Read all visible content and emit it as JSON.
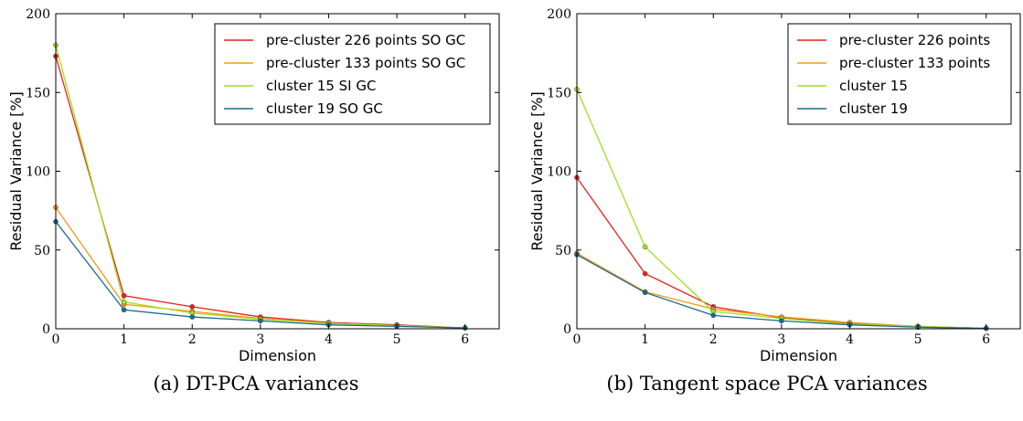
{
  "chart_data": [
    {
      "type": "line",
      "caption": "(a) DT-PCA variances",
      "xlabel": "Dimension",
      "ylabel": "Residual Variance [%]",
      "xlim": [
        0,
        6.5
      ],
      "ylim": [
        0,
        200
      ],
      "xticks": [
        "0",
        "1",
        "2",
        "3",
        "4",
        "5",
        "6"
      ],
      "yticks": [
        "0",
        "50",
        "100",
        "150",
        "200"
      ],
      "x": [
        0,
        1,
        2,
        3,
        4,
        5,
        6
      ],
      "legend_position": "top-right",
      "series": [
        {
          "name": "pre-cluster 226 points SO GC",
          "color": "#e8211b",
          "values": [
            173,
            21,
            14,
            7.5,
            4,
            2.5,
            0.5
          ]
        },
        {
          "name": "pre-cluster 133 points SO GC",
          "color": "#f39a14",
          "values": [
            77,
            15.5,
            11,
            6.5,
            3.5,
            2,
            0.5
          ]
        },
        {
          "name": "cluster 15 SI GC",
          "color": "#9ae21d",
          "values": [
            180,
            17,
            10,
            6,
            3.5,
            2,
            0.5
          ]
        },
        {
          "name": "cluster 19 SO GC",
          "color": "#1a6b8e",
          "values": [
            68,
            12,
            7.5,
            5,
            2.5,
            1.5,
            0.5
          ]
        }
      ]
    },
    {
      "type": "line",
      "caption": "(b) Tangent space PCA variances",
      "xlabel": "Dimension",
      "ylabel": "Residual Variance [%]",
      "xlim": [
        0,
        6.5
      ],
      "ylim": [
        0,
        200
      ],
      "xticks": [
        "0",
        "1",
        "2",
        "3",
        "4",
        "5",
        "6"
      ],
      "yticks": [
        "0",
        "50",
        "100",
        "150",
        "200"
      ],
      "x": [
        0,
        1,
        2,
        3,
        4,
        5,
        6
      ],
      "legend_position": "top-right",
      "series": [
        {
          "name": "pre-cluster 226 points",
          "color": "#e8211b",
          "values": [
            96,
            35,
            14,
            7,
            3.5,
            1.5,
            0.3
          ]
        },
        {
          "name": "pre-cluster 133 points",
          "color": "#f39a14",
          "values": [
            48,
            23.5,
            12.5,
            7.5,
            4,
            1.5,
            0.3
          ]
        },
        {
          "name": "cluster 15",
          "color": "#9ae21d",
          "values": [
            152,
            52,
            11,
            6.5,
            3,
            1.5,
            0.3
          ]
        },
        {
          "name": "cluster 19",
          "color": "#1a6b8e",
          "values": [
            47,
            23,
            8.5,
            5,
            2.5,
            1,
            0.2
          ]
        }
      ]
    }
  ]
}
